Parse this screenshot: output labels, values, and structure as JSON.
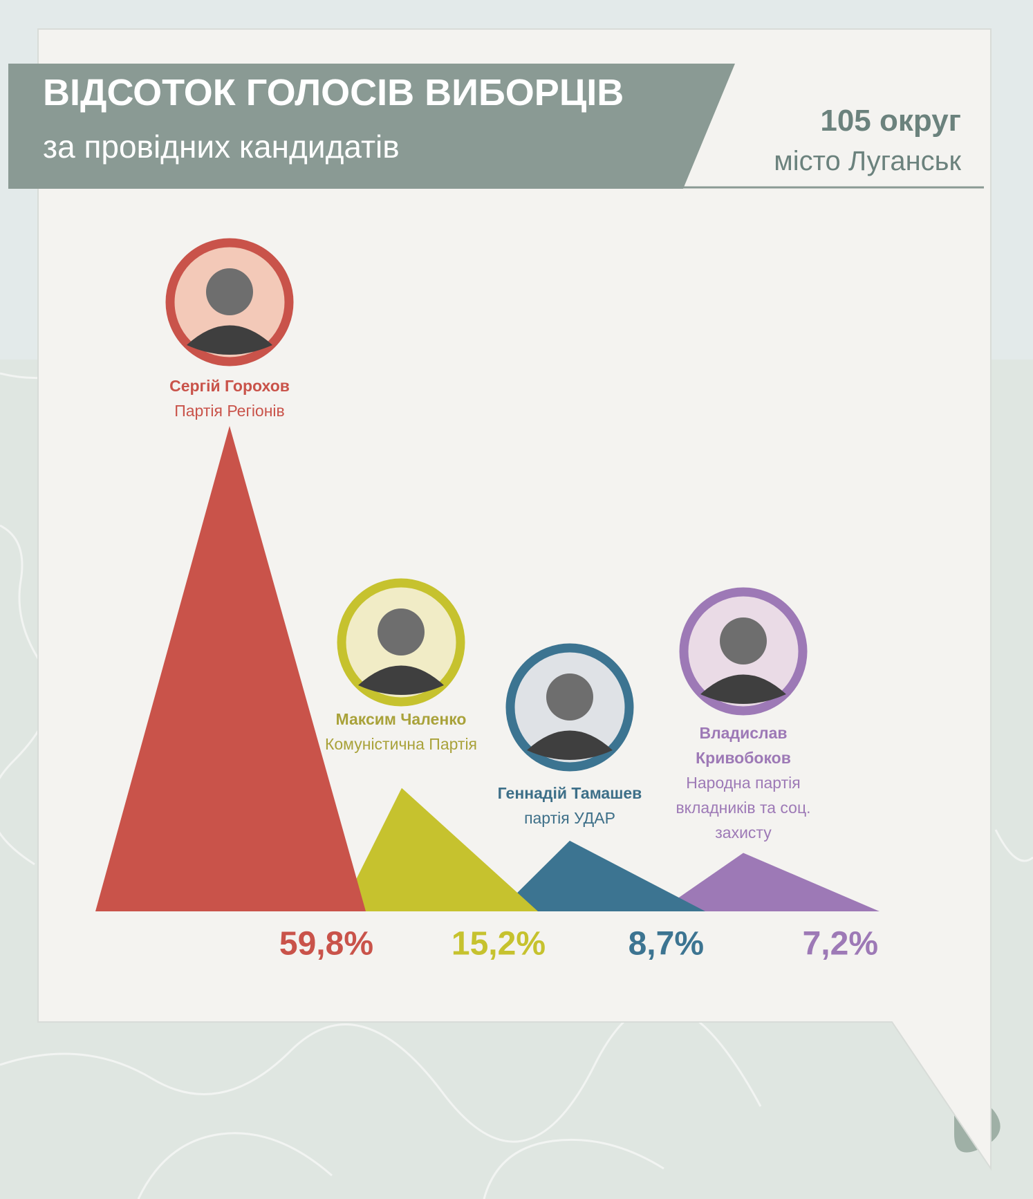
{
  "chart_data": {
    "type": "triangle",
    "title": "ВІДСОТОК ГОЛОСІВ ВИБОРЦІВ",
    "subtitle": "за провідних кандидатів",
    "district": "105 округ",
    "city": "місто Луганськ",
    "categories": [
      "Сергій Горохов",
      "Максим Чаленко",
      "Геннадій Тамашев",
      "Владислав Кривобоков"
    ],
    "parties": [
      "Партія Регіонів",
      "Комуністична Партія",
      "партія УДАР",
      "Народна партія вкладників та соц. захисту"
    ],
    "values": [
      59.8,
      15.2,
      8.7,
      7.2
    ],
    "value_labels": [
      "59,8%",
      "15,2%",
      "8,7%",
      "7,2%"
    ],
    "colors": [
      "#c9534a",
      "#c6c22e",
      "#3c7491",
      "#9d79b6"
    ]
  }
}
